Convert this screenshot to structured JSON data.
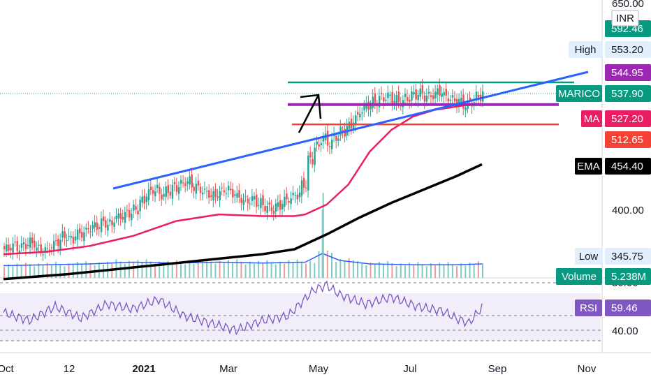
{
  "chart_data": [
    {
      "type": "candlestick",
      "symbol": "MARICO",
      "currency": "INR",
      "x_axis": {
        "ticks": [
          "Oct",
          "12",
          "2021",
          "Mar",
          "May",
          "Jul",
          "Sep",
          "Nov"
        ]
      },
      "y_axis": {
        "ticks": [
          650.0,
          400.0
        ],
        "ylim": [
          300,
          650
        ]
      },
      "series": [
        {
          "name": "Price",
          "type": "candlestick",
          "points": [
            [
              0,
              352
            ],
            [
              3,
              356
            ],
            [
              6,
              354
            ],
            [
              9,
              358
            ],
            [
              12,
              360
            ],
            [
              15,
              352
            ],
            [
              18,
              350
            ],
            [
              21,
              356
            ],
            [
              24,
              362
            ],
            [
              27,
              368
            ],
            [
              30,
              364
            ],
            [
              33,
              370
            ],
            [
              36,
              372
            ],
            [
              39,
              378
            ],
            [
              42,
              380
            ],
            [
              45,
              384
            ],
            [
              48,
              382
            ],
            [
              51,
              390
            ],
            [
              54,
              392
            ],
            [
              57,
              396
            ],
            [
              60,
              400
            ],
            [
              63,
              410
            ],
            [
              66,
              420
            ],
            [
              69,
              424
            ],
            [
              72,
              418
            ],
            [
              75,
              422
            ],
            [
              78,
              426
            ],
            [
              81,
              430
            ],
            [
              84,
              434
            ],
            [
              87,
              428
            ],
            [
              90,
              424
            ],
            [
              93,
              420
            ],
            [
              96,
              416
            ],
            [
              99,
              420
            ],
            [
              102,
              424
            ],
            [
              105,
              420
            ],
            [
              108,
              414
            ],
            [
              111,
              410
            ],
            [
              114,
              412
            ],
            [
              117,
              408
            ],
            [
              120,
              404
            ],
            [
              123,
              400
            ],
            [
              126,
              404
            ],
            [
              129,
              410
            ],
            [
              132,
              414
            ],
            [
              135,
              418
            ],
            [
              138,
              430
            ],
            [
              141,
              460
            ],
            [
              144,
              476
            ],
            [
              147,
              486
            ],
            [
              150,
              480
            ],
            [
              153,
              488
            ],
            [
              156,
              494
            ],
            [
              159,
              500
            ],
            [
              162,
              510
            ],
            [
              165,
              520
            ],
            [
              168,
              526
            ],
            [
              171,
              530
            ],
            [
              174,
              534
            ],
            [
              177,
              536
            ],
            [
              180,
              532
            ],
            [
              183,
              530
            ],
            [
              186,
              534
            ],
            [
              189,
              538
            ],
            [
              192,
              540
            ],
            [
              195,
              536
            ],
            [
              198,
              538
            ],
            [
              201,
              542
            ],
            [
              204,
              536
            ],
            [
              207,
              532
            ],
            [
              210,
              530
            ],
            [
              213,
              526
            ],
            [
              216,
              530
            ],
            [
              219,
              536
            ],
            [
              222,
              540
            ]
          ]
        },
        {
          "name": "MA",
          "type": "line",
          "color": "#e91e63",
          "points": [
            [
              0,
              346
            ],
            [
              20,
              349
            ],
            [
              40,
              356
            ],
            [
              60,
              368
            ],
            [
              80,
              386
            ],
            [
              100,
              394
            ],
            [
              120,
              392
            ],
            [
              135,
              392
            ],
            [
              140,
              394
            ],
            [
              150,
              406
            ],
            [
              160,
              430
            ],
            [
              170,
              470
            ],
            [
              180,
              496
            ],
            [
              190,
              512
            ],
            [
              200,
              520
            ],
            [
              210,
              524
            ],
            [
              215,
              526
            ],
            [
              222,
              527.2
            ]
          ]
        },
        {
          "name": "EMA",
          "type": "line",
          "color": "#000000",
          "points": [
            [
              0,
              316
            ],
            [
              30,
              322
            ],
            [
              60,
              330
            ],
            [
              90,
              338
            ],
            [
              120,
              346
            ],
            [
              135,
              352
            ],
            [
              150,
              370
            ],
            [
              165,
              390
            ],
            [
              180,
              408
            ],
            [
              195,
              424
            ],
            [
              210,
              440
            ],
            [
              222,
              454.4
            ]
          ]
        },
        {
          "name": "Volume",
          "type": "volume",
          "color": "#2962ff",
          "points": [
            [
              0,
              0.3
            ],
            [
              20,
              0.35
            ],
            [
              40,
              0.4
            ],
            [
              60,
              0.5
            ],
            [
              80,
              0.45
            ],
            [
              100,
              0.5
            ],
            [
              120,
              0.45
            ],
            [
              140,
              0.5
            ],
            [
              148,
              1.0
            ],
            [
              156,
              0.6
            ],
            [
              170,
              0.4
            ],
            [
              190,
              0.35
            ],
            [
              210,
              0.35
            ],
            [
              222,
              0.4
            ]
          ]
        },
        {
          "name": "RSI",
          "type": "line",
          "color": "#7e57c2",
          "points": [
            [
              0,
              55
            ],
            [
              12,
              48
            ],
            [
              24,
              60
            ],
            [
              36,
              50
            ],
            [
              48,
              62
            ],
            [
              60,
              58
            ],
            [
              72,
              66
            ],
            [
              84,
              52
            ],
            [
              96,
              46
            ],
            [
              108,
              40
            ],
            [
              120,
              48
            ],
            [
              132,
              52
            ],
            [
              144,
              74
            ],
            [
              150,
              78
            ],
            [
              156,
              70
            ],
            [
              168,
              62
            ],
            [
              180,
              68
            ],
            [
              192,
              60
            ],
            [
              204,
              56
            ],
            [
              210,
              50
            ],
            [
              216,
              46
            ],
            [
              222,
              59.46
            ]
          ]
        }
      ]
    }
  ],
  "price_tags": [
    {
      "label": "INR",
      "color": "#ffffff",
      "text_color": "#131722"
    },
    {
      "label": "",
      "value": "592.46",
      "color": "#089981"
    },
    {
      "label": "High",
      "value": "553.20",
      "color": "#e3effd",
      "text_color": "#131722"
    },
    {
      "label": "",
      "value": "544.95",
      "color": "#9c27b0"
    },
    {
      "label": "MARICO",
      "value": "537.90",
      "color": "#089981"
    },
    {
      "label": "MA",
      "value": "527.20",
      "color": "#e91e63"
    },
    {
      "label": "",
      "value": "512.65",
      "color": "#f44336"
    },
    {
      "label": "EMA",
      "value": "454.40",
      "color": "#000000"
    },
    {
      "label": "Low",
      "value": "345.75",
      "color": "#e3effd",
      "text_color": "#131722"
    },
    {
      "label": "Volume",
      "value": "5.238M",
      "color": "#089981"
    },
    {
      "label": "RSI",
      "value": "59.46",
      "color": "#7e57c2"
    }
  ],
  "rsi_axis": {
    "ticks": [
      80.0,
      40.0
    ]
  },
  "drawings": [
    {
      "name": "high-line",
      "color": "#089981"
    },
    {
      "name": "purple-line",
      "color": "#9c27b0"
    },
    {
      "name": "red-line",
      "color": "#f44336"
    },
    {
      "name": "blue-trendline",
      "color": "#2962ff"
    },
    {
      "name": "black-arrow",
      "color": "#000000"
    }
  ]
}
